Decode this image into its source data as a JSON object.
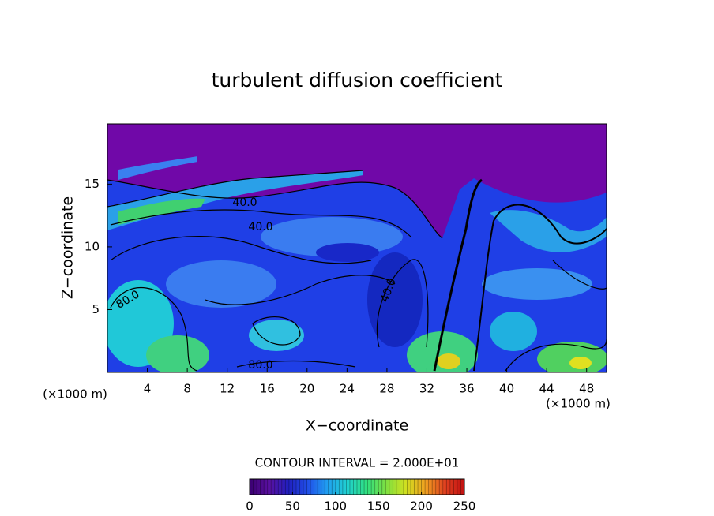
{
  "chart_data": {
    "type": "contour",
    "title": "turbulent diffusion coefficient",
    "x_label": "X−coordinate",
    "y_label": "Z−coordinate",
    "x_unit_label": "(×1000 m)",
    "y_unit_label": "(×1000 m)",
    "xlim": [
      0,
      50
    ],
    "ylim": [
      0,
      19.8
    ],
    "xticks": [
      4,
      8,
      12,
      16,
      20,
      24,
      28,
      32,
      36,
      40,
      44,
      48
    ],
    "yticks": [
      5,
      10,
      15
    ],
    "contour_labels": [
      "40.0",
      "40.0",
      "40.0",
      "80.0",
      "80.0"
    ],
    "contour_interval_label": "CONTOUR INTERVAL = 2.000E+01",
    "colorbar": {
      "lim": [
        0,
        250
      ],
      "ticks": [
        0,
        50,
        100,
        150,
        200,
        250
      ],
      "colors": [
        "#3a0070",
        "#5a10a0",
        "#2020c0",
        "#2050e8",
        "#20a0f0",
        "#20d0d0",
        "#30e080",
        "#80e040",
        "#d0e020",
        "#f0a020",
        "#e04020",
        "#c01010"
      ]
    }
  }
}
